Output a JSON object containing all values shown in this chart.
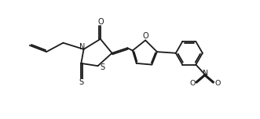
{
  "bg_color": "#ffffff",
  "line_color": "#1a1a1a",
  "line_width": 1.3,
  "figsize": [
    3.31,
    1.52
  ],
  "dpi": 100,
  "xlim": [
    0,
    10
  ],
  "ylim": [
    0,
    4.6
  ]
}
